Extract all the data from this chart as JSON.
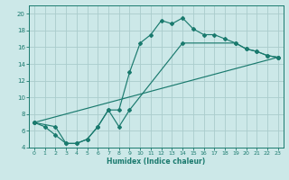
{
  "xlabel": "Humidex (Indice chaleur)",
  "xlim": [
    -0.5,
    23.5
  ],
  "ylim": [
    4,
    21
  ],
  "xticks": [
    0,
    1,
    2,
    3,
    4,
    5,
    6,
    7,
    8,
    9,
    10,
    11,
    12,
    13,
    14,
    15,
    16,
    17,
    18,
    19,
    20,
    21,
    22,
    23
  ],
  "yticks": [
    4,
    6,
    8,
    10,
    12,
    14,
    16,
    18,
    20
  ],
  "bg_color": "#cce8e8",
  "line_color": "#1a7a6e",
  "grid_color": "#aacccc",
  "series": [
    {
      "x": [
        0,
        1,
        2,
        3,
        4,
        5,
        6,
        7,
        8,
        9,
        10,
        11,
        12,
        13,
        14,
        15,
        16,
        17,
        18,
        19,
        20,
        21,
        22,
        23
      ],
      "y": [
        7,
        6.5,
        5.5,
        4.5,
        4.5,
        5.0,
        6.5,
        8.5,
        8.5,
        13.0,
        16.5,
        17.5,
        19.2,
        18.8,
        19.5,
        18.2,
        17.5,
        17.5,
        17.0,
        16.5,
        15.8,
        15.5,
        15.0,
        14.8
      ]
    },
    {
      "x": [
        0,
        2,
        3,
        4,
        5,
        6,
        7,
        8,
        9,
        14,
        19,
        20,
        21,
        22,
        23
      ],
      "y": [
        7,
        6.5,
        4.5,
        4.5,
        5.0,
        6.5,
        8.5,
        6.5,
        8.5,
        16.5,
        16.5,
        15.8,
        15.5,
        15.0,
        14.8
      ]
    },
    {
      "x": [
        0,
        23
      ],
      "y": [
        7,
        14.8
      ]
    }
  ]
}
